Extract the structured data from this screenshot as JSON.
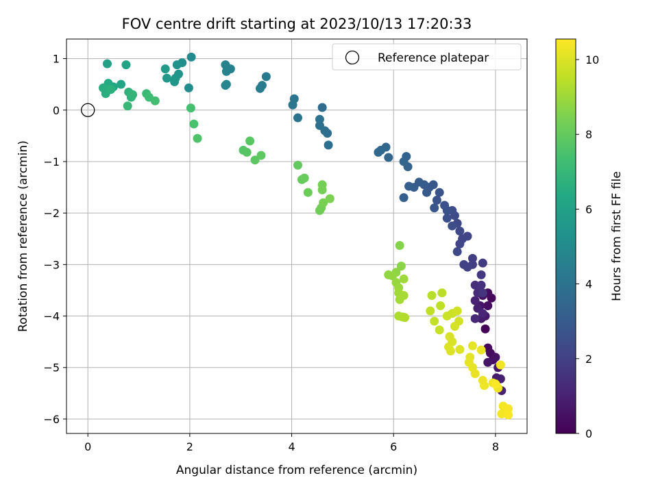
{
  "chart_data": {
    "type": "scatter",
    "title": "FOV centre drift starting at 2023/10/13 17:20:33",
    "xlabel": "Angular distance from reference (arcmin)",
    "ylabel": "Rotation from reference (arcmin)",
    "xlim": [
      -0.42,
      8.62
    ],
    "ylim": [
      -6.28,
      1.38
    ],
    "xticks": [
      0,
      2,
      4,
      6,
      8
    ],
    "yticks": [
      1,
      0,
      -1,
      -2,
      -3,
      -4,
      -5,
      -6
    ],
    "xtick_labels": [
      "0",
      "2",
      "4",
      "6",
      "8"
    ],
    "ytick_labels": [
      "1",
      "0",
      "−1",
      "−2",
      "−3",
      "−4",
      "−5",
      "−6"
    ],
    "grid": true,
    "legend": {
      "position": "top-right",
      "label": "Reference platepar"
    },
    "reference_point": {
      "x": 0,
      "y": 0
    },
    "colorbar": {
      "label": "Hours from first FF file",
      "min": 0,
      "max": 10.55,
      "ticks": [
        0,
        2,
        4,
        6,
        8,
        10
      ],
      "tick_labels": [
        "0",
        "2",
        "4",
        "6",
        "8",
        "10"
      ],
      "colormap": "viridis"
    },
    "points": [
      [
        7.8,
        -4.25,
        0.1
      ],
      [
        7.85,
        -4.62,
        0.2
      ],
      [
        7.9,
        -4.72,
        0.3
      ],
      [
        7.95,
        -4.85,
        0.4
      ],
      [
        8.0,
        -4.8,
        0.5
      ],
      [
        7.85,
        -4.9,
        0.6
      ],
      [
        8.05,
        -5.0,
        0.7
      ],
      [
        8.02,
        -5.2,
        0.8
      ],
      [
        8.1,
        -5.22,
        0.9
      ],
      [
        8.12,
        -5.45,
        1.0
      ],
      [
        7.92,
        -3.65,
        0.2
      ],
      [
        7.85,
        -3.55,
        0.3
      ],
      [
        7.85,
        -3.8,
        0.4
      ],
      [
        7.75,
        -3.6,
        0.5
      ],
      [
        7.7,
        -3.8,
        0.6
      ],
      [
        7.8,
        -4.0,
        0.7
      ],
      [
        7.72,
        -4.05,
        0.8
      ],
      [
        7.65,
        -3.85,
        0.9
      ],
      [
        7.6,
        -3.7,
        1.0
      ],
      [
        7.75,
        -3.95,
        1.1
      ],
      [
        7.6,
        -4.05,
        1.2
      ],
      [
        7.65,
        -3.55,
        1.3
      ],
      [
        7.6,
        -3.4,
        1.4
      ],
      [
        7.72,
        -3.4,
        1.5
      ],
      [
        7.75,
        -3.55,
        1.6
      ],
      [
        7.72,
        -3.2,
        1.7
      ],
      [
        7.75,
        -2.97,
        1.8
      ],
      [
        7.55,
        -2.88,
        1.9
      ],
      [
        7.55,
        -3.0,
        1.95
      ],
      [
        7.45,
        -3.05,
        2.0
      ],
      [
        7.38,
        -3.0,
        2.05
      ],
      [
        7.45,
        -2.45,
        2.1
      ],
      [
        7.35,
        -2.5,
        2.15
      ],
      [
        7.3,
        -2.6,
        2.2
      ],
      [
        7.25,
        -2.75,
        2.25
      ],
      [
        7.3,
        -2.35,
        2.3
      ],
      [
        7.25,
        -2.2,
        2.35
      ],
      [
        7.2,
        -2.05,
        2.4
      ],
      [
        7.15,
        -1.95,
        2.45
      ],
      [
        7.15,
        -2.25,
        2.5
      ],
      [
        7.05,
        -2.1,
        2.55
      ],
      [
        7.05,
        -1.95,
        2.6
      ],
      [
        7.0,
        -1.85,
        2.65
      ],
      [
        6.9,
        -1.6,
        2.7
      ],
      [
        6.85,
        -1.75,
        2.75
      ],
      [
        6.8,
        -1.9,
        2.8
      ],
      [
        6.78,
        -1.45,
        2.85
      ],
      [
        6.7,
        -1.5,
        2.9
      ],
      [
        6.65,
        -1.6,
        2.95
      ],
      [
        6.6,
        -1.45,
        3.0
      ],
      [
        6.5,
        -1.4,
        3.05
      ],
      [
        6.4,
        -1.5,
        3.1
      ],
      [
        6.3,
        -1.48,
        3.15
      ],
      [
        6.2,
        -1.7,
        3.2
      ],
      [
        6.28,
        -1.1,
        3.3
      ],
      [
        6.25,
        -0.9,
        3.35
      ],
      [
        6.2,
        -1.0,
        3.4
      ],
      [
        5.9,
        -0.92,
        3.45
      ],
      [
        5.85,
        -0.72,
        3.5
      ],
      [
        5.75,
        -0.78,
        3.55
      ],
      [
        5.7,
        -0.82,
        3.6
      ],
      [
        4.6,
        0.05,
        3.7
      ],
      [
        4.7,
        -0.45,
        3.75
      ],
      [
        4.72,
        -0.68,
        3.8
      ],
      [
        4.65,
        -0.4,
        3.85
      ],
      [
        4.55,
        -0.3,
        3.9
      ],
      [
        4.55,
        -0.18,
        3.95
      ],
      [
        4.12,
        -0.15,
        4.0
      ],
      [
        4.02,
        0.1,
        4.1
      ],
      [
        4.05,
        0.22,
        4.15
      ],
      [
        3.5,
        0.65,
        4.3
      ],
      [
        3.42,
        0.48,
        4.35
      ],
      [
        3.38,
        0.42,
        4.4
      ],
      [
        2.8,
        0.8,
        4.6
      ],
      [
        2.72,
        0.75,
        4.65
      ],
      [
        2.7,
        0.88,
        4.7
      ],
      [
        2.7,
        0.48,
        4.75
      ],
      [
        2.72,
        0.5,
        4.8
      ],
      [
        2.03,
        1.03,
        5.0
      ],
      [
        1.98,
        0.43,
        5.1
      ],
      [
        1.85,
        0.92,
        5.2
      ],
      [
        1.75,
        0.88,
        5.3
      ],
      [
        1.78,
        0.7,
        5.4
      ],
      [
        1.72,
        0.62,
        5.5
      ],
      [
        1.7,
        0.55,
        5.55
      ],
      [
        1.55,
        0.62,
        5.6
      ],
      [
        1.52,
        0.8,
        5.7
      ],
      [
        0.38,
        0.9,
        6.0
      ],
      [
        0.75,
        0.88,
        6.1
      ],
      [
        0.65,
        0.5,
        6.2
      ],
      [
        0.5,
        0.45,
        6.3
      ],
      [
        0.4,
        0.52,
        6.4
      ],
      [
        0.38,
        0.4,
        6.5
      ],
      [
        0.3,
        0.43,
        6.55
      ],
      [
        0.35,
        0.32,
        6.6
      ],
      [
        0.45,
        0.4,
        6.7
      ],
      [
        0.8,
        0.35,
        6.75
      ],
      [
        0.85,
        0.25,
        6.8
      ],
      [
        0.88,
        0.3,
        6.9
      ],
      [
        0.78,
        0.08,
        7.0
      ],
      [
        1.15,
        0.32,
        7.1
      ],
      [
        1.2,
        0.25,
        7.2
      ],
      [
        1.32,
        0.18,
        7.3
      ],
      [
        2.02,
        0.04,
        7.4
      ],
      [
        2.08,
        -0.27,
        7.5
      ],
      [
        2.15,
        -0.55,
        7.6
      ],
      [
        3.05,
        -0.78,
        7.7
      ],
      [
        3.12,
        -0.82,
        7.75
      ],
      [
        3.18,
        -0.6,
        7.8
      ],
      [
        3.28,
        -0.97,
        7.85
      ],
      [
        3.4,
        -0.88,
        7.9
      ],
      [
        4.12,
        -1.07,
        8.0
      ],
      [
        4.2,
        -1.35,
        8.05
      ],
      [
        4.25,
        -1.32,
        8.1
      ],
      [
        4.32,
        -1.6,
        8.15
      ],
      [
        4.55,
        -1.95,
        8.2
      ],
      [
        4.58,
        -1.9,
        8.25
      ],
      [
        4.6,
        -1.45,
        8.3
      ],
      [
        4.6,
        -1.55,
        8.35
      ],
      [
        4.62,
        -1.8,
        8.4
      ],
      [
        4.75,
        -1.72,
        8.45
      ],
      [
        6.12,
        -2.63,
        8.6
      ],
      [
        6.15,
        -3.03,
        8.7
      ],
      [
        6.05,
        -3.15,
        8.75
      ],
      [
        5.9,
        -3.2,
        8.8
      ],
      [
        5.98,
        -3.22,
        8.85
      ],
      [
        6.05,
        -3.35,
        8.9
      ],
      [
        6.1,
        -3.45,
        8.95
      ],
      [
        6.2,
        -3.28,
        9.0
      ],
      [
        6.1,
        -3.55,
        9.05
      ],
      [
        6.12,
        -3.68,
        9.1
      ],
      [
        6.2,
        -3.6,
        9.15
      ],
      [
        6.18,
        -4.02,
        9.2
      ],
      [
        6.1,
        -4.0,
        9.25
      ],
      [
        6.22,
        -4.03,
        9.3
      ],
      [
        6.75,
        -3.6,
        9.4
      ],
      [
        6.95,
        -3.55,
        9.45
      ],
      [
        6.92,
        -3.8,
        9.5
      ],
      [
        6.72,
        -3.9,
        9.55
      ],
      [
        6.8,
        -4.1,
        9.6
      ],
      [
        6.9,
        -4.27,
        9.65
      ],
      [
        7.05,
        -4.0,
        9.7
      ],
      [
        7.15,
        -3.95,
        9.75
      ],
      [
        7.25,
        -3.9,
        9.8
      ],
      [
        7.28,
        -4.1,
        9.85
      ],
      [
        7.2,
        -4.2,
        9.9
      ],
      [
        7.1,
        -4.4,
        9.92
      ],
      [
        7.15,
        -4.5,
        9.95
      ],
      [
        7.08,
        -4.6,
        9.97
      ],
      [
        7.12,
        -4.68,
        10.0
      ],
      [
        7.3,
        -4.65,
        10.05
      ],
      [
        7.5,
        -4.8,
        10.1
      ],
      [
        7.55,
        -4.58,
        10.12
      ],
      [
        7.48,
        -4.9,
        10.15
      ],
      [
        7.55,
        -5.0,
        10.18
      ],
      [
        7.6,
        -5.12,
        10.2
      ],
      [
        7.72,
        -4.66,
        10.22
      ],
      [
        7.75,
        -5.25,
        10.25
      ],
      [
        7.78,
        -5.35,
        10.28
      ],
      [
        7.95,
        -5.3,
        10.3
      ],
      [
        8.05,
        -5.4,
        10.32
      ],
      [
        8.1,
        -4.95,
        10.35
      ],
      [
        8.15,
        -5.75,
        10.38
      ],
      [
        8.12,
        -5.9,
        10.4
      ],
      [
        8.2,
        -5.85,
        10.42
      ],
      [
        8.25,
        -5.8,
        10.45
      ],
      [
        8.25,
        -5.92,
        10.48
      ],
      [
        8.0,
        -5.32,
        10.5
      ]
    ]
  }
}
